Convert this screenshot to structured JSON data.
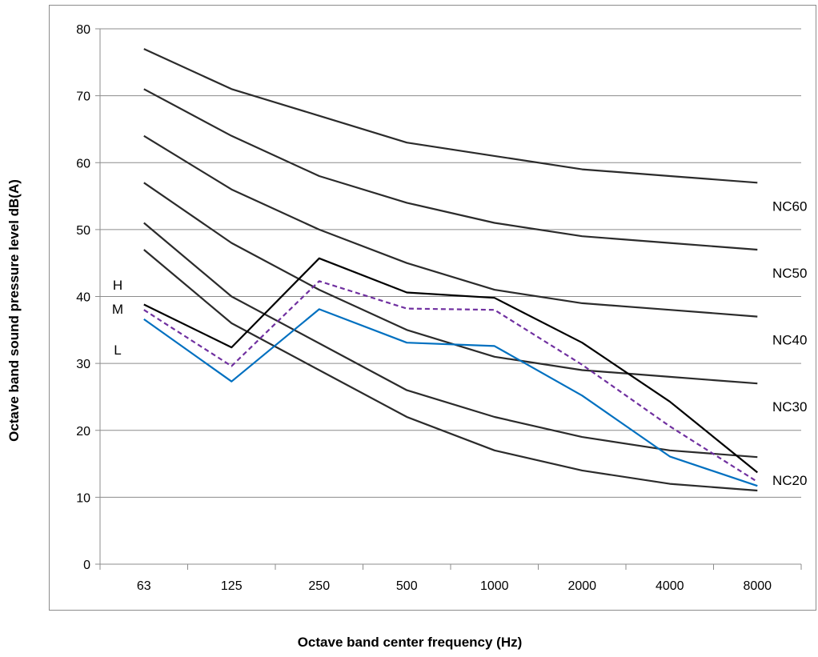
{
  "chart_data": {
    "type": "line",
    "title": "",
    "xlabel": "Octave band center frequency (Hz)",
    "ylabel": "Octave band sound pressure level dB(A)",
    "categories": [
      "63",
      "125",
      "250",
      "500",
      "1000",
      "2000",
      "4000",
      "8000"
    ],
    "ylim": [
      0,
      80
    ],
    "yticks": [
      "0",
      "10",
      "20",
      "30",
      "40",
      "50",
      "60",
      "70",
      "80"
    ],
    "grid": "horizontal",
    "legend": "none",
    "nc_curves": [
      {
        "name": "NC60",
        "color": "#2b2b2b",
        "values": [
          77,
          71,
          67,
          63,
          61,
          59,
          58,
          57
        ]
      },
      {
        "name": "NC50",
        "color": "#2b2b2b",
        "values": [
          71,
          64,
          58,
          54,
          51,
          49,
          48,
          47
        ]
      },
      {
        "name": "NC40",
        "color": "#2b2b2b",
        "values": [
          64,
          56,
          50,
          45,
          41,
          39,
          38,
          37
        ]
      },
      {
        "name": "NC30",
        "color": "#2b2b2b",
        "values": [
          57,
          48,
          41,
          35,
          31,
          29,
          28,
          27
        ]
      },
      {
        "name": "NC20",
        "color": "#2b2b2b",
        "values": [
          51,
          40,
          33,
          26,
          22,
          19,
          17,
          16
        ]
      },
      {
        "name": "",
        "color": "#2b2b2b",
        "values": [
          47,
          36,
          29,
          22,
          17,
          14,
          12,
          11
        ]
      }
    ],
    "series": [
      {
        "name": "H",
        "color": "#000000",
        "dash": "solid",
        "values": [
          38.8,
          32.4,
          45.7,
          40.6,
          39.8,
          33.1,
          24.3,
          13.7
        ]
      },
      {
        "name": "M",
        "color": "#7030a0",
        "dash": "dashed",
        "values": [
          38.0,
          29.6,
          42.3,
          38.2,
          38.0,
          29.8,
          20.6,
          12.3
        ]
      },
      {
        "name": "L",
        "color": "#0070c0",
        "dash": "solid",
        "values": [
          36.6,
          27.3,
          38.1,
          33.1,
          32.6,
          25.2,
          16.1,
          11.7
        ]
      }
    ]
  }
}
